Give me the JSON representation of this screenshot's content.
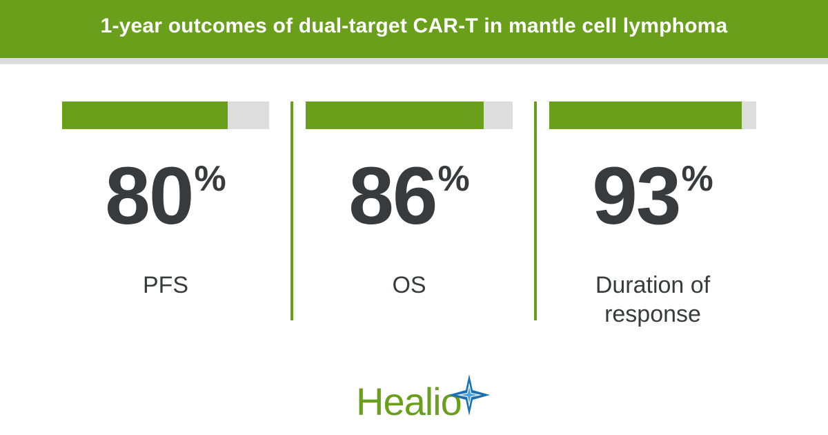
{
  "header": {
    "title": "1-year outcomes of dual-target CAR-T in mantle cell lymphoma"
  },
  "colors": {
    "accent": "#6a9f1c",
    "track": "#dddddd",
    "text": "#373b3e",
    "star_blue": "#1a6fb5"
  },
  "chart_data": {
    "type": "bar",
    "title": "1-year outcomes of dual-target CAR-T in mantle cell lymphoma",
    "categories": [
      "PFS",
      "OS",
      "Duration of\nresponse"
    ],
    "values": [
      80,
      86,
      93
    ],
    "unit": "%",
    "ylim": [
      0,
      100
    ],
    "grid": false,
    "legend": "none"
  },
  "stats": [
    {
      "value": "80",
      "unit": "%",
      "label": "PFS"
    },
    {
      "value": "86",
      "unit": "%",
      "label": "OS"
    },
    {
      "value": "93",
      "unit": "%",
      "label": "Duration of\nresponse"
    }
  ],
  "logo": {
    "text": "Healio",
    "icon": "star-burst-icon"
  }
}
